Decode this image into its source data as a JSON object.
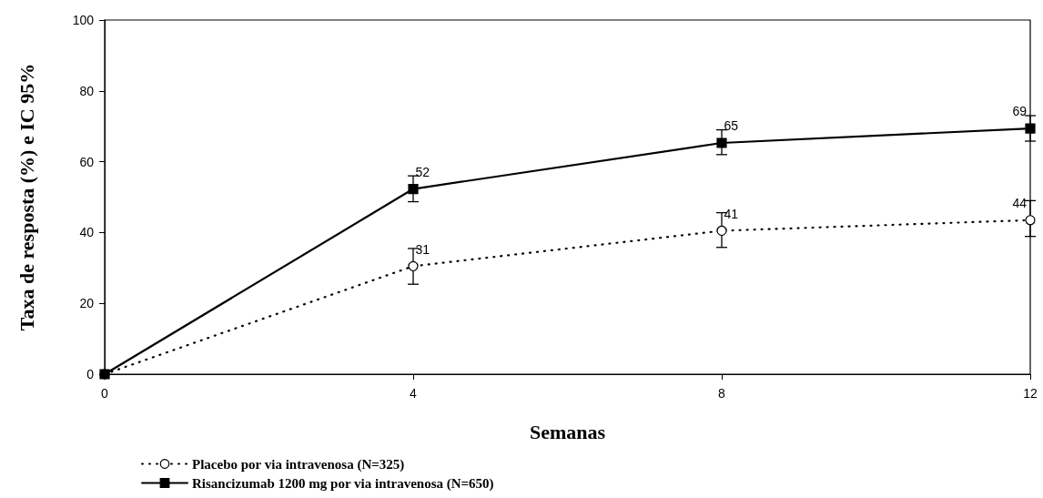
{
  "chart_data": {
    "type": "line",
    "xlabel": "Semanas",
    "ylabel": "Taxa de resposta (%) e IC 95%",
    "x": [
      0,
      4,
      8,
      12
    ],
    "xlim": [
      0,
      12
    ],
    "xticks": [
      0,
      4,
      8,
      12
    ],
    "ylim": [
      0,
      100
    ],
    "yticks": [
      0,
      20,
      40,
      60,
      80,
      100
    ],
    "grid": false,
    "legend": "bottom",
    "series": [
      {
        "name": "Placebo por via intravenosa (N=325)",
        "color": "#000000",
        "marker": "circle",
        "line_style": "dotted",
        "values": [
          0,
          30.5,
          40.5,
          43.5
        ],
        "errors": [
          null,
          [
            25.4,
            35.5
          ],
          [
            35.8,
            45.6
          ],
          [
            38.9,
            49
          ]
        ],
        "value_labels": [
          null,
          "31",
          "41",
          "44"
        ]
      },
      {
        "name": "Risancizumab 1200 mg por via intravenosa (N=650)",
        "color": "#000000",
        "marker": "square",
        "line_style": "solid",
        "values": [
          0,
          52.3,
          65.3,
          69.4
        ],
        "errors": [
          null,
          [
            48.7,
            56
          ],
          [
            62,
            69
          ],
          [
            65.8,
            73
          ]
        ],
        "value_labels": [
          null,
          "52",
          "65",
          "69"
        ]
      }
    ]
  }
}
